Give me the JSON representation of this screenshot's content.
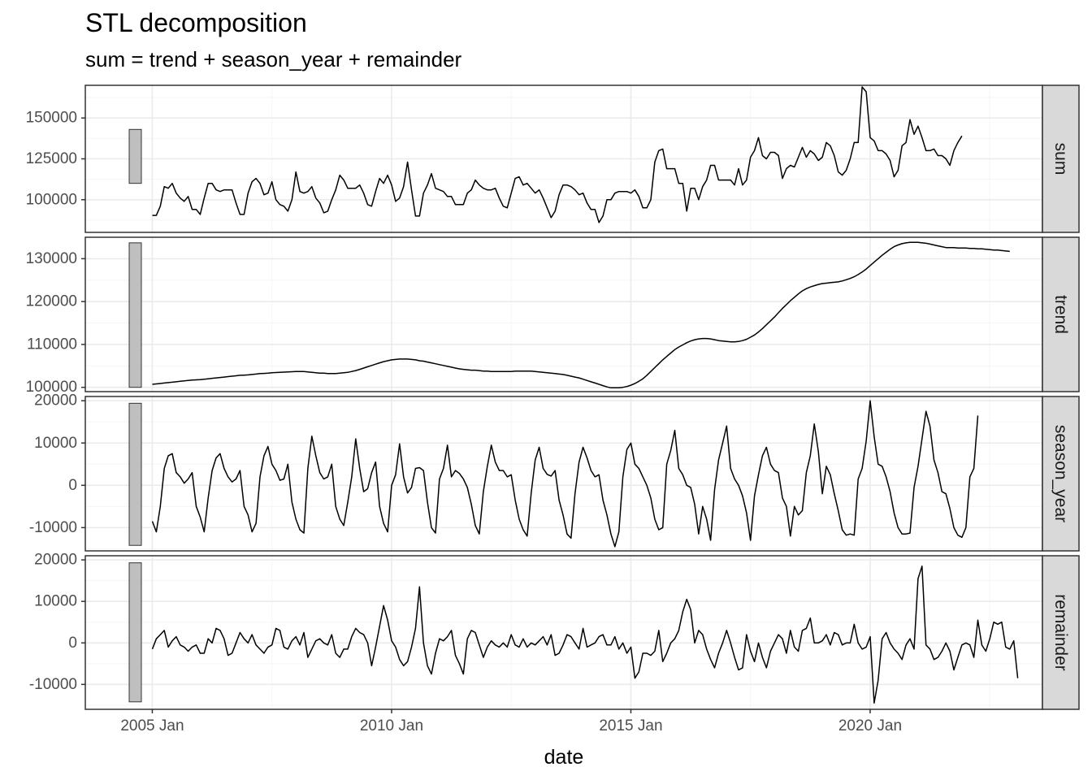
{
  "title": "STL decomposition",
  "subtitle": "sum = trend + season_year + remainder",
  "chart_data": {
    "type": "line",
    "title": "STL decomposition",
    "subtitle": "sum = trend + season_year + remainder",
    "xlabel": "date",
    "x_ticks": [
      {
        "label": "2005 Jan",
        "value": 2005.0
      },
      {
        "label": "2010 Jan",
        "value": 2010.0
      },
      {
        "label": "2015 Jan",
        "value": 2015.0
      },
      {
        "label": "2020 Jan",
        "value": 2020.0
      }
    ],
    "x_start": "2005 Jan",
    "x_frequency": "monthly",
    "xlim": [
      2003.6,
      2023.6
    ],
    "grid": true,
    "legend": "none",
    "scale_bars": true,
    "colors": {
      "line": "#000000",
      "panel_border": "#333333",
      "grid_major": "#ebebeb",
      "grid_minor": "#f5f5f5",
      "strip_fill": "#d9d9d9",
      "scale_bar_fill": "#bfbfbf"
    },
    "panels": [
      {
        "name": "sum",
        "ylim": [
          80000,
          170000
        ],
        "yticks": [
          100000,
          125000,
          150000
        ],
        "scale_bar": [
          110000,
          143000
        ],
        "values": [
          90400,
          90400,
          96000,
          108000,
          107000,
          110000,
          104000,
          101000,
          99000,
          102000,
          94000,
          94000,
          91000,
          101000,
          110000,
          110000,
          106000,
          105000,
          106000,
          106000,
          106000,
          98000,
          91000,
          91000,
          104000,
          111000,
          113000,
          110000,
          103000,
          104000,
          111000,
          100000,
          97000,
          96000,
          93000,
          100000,
          117000,
          105000,
          104000,
          105000,
          108000,
          101000,
          98000,
          92000,
          93000,
          100000,
          106000,
          115000,
          112000,
          107000,
          107000,
          107000,
          109000,
          104000,
          97000,
          96000,
          105000,
          113000,
          110000,
          115000,
          109000,
          99000,
          101000,
          108000,
          123000,
          106000,
          90000,
          90000,
          104000,
          109000,
          116000,
          107000,
          106000,
          105000,
          102000,
          102000,
          97000,
          97000,
          97000,
          104000,
          106000,
          112000,
          109000,
          107000,
          106000,
          106000,
          107000,
          101000,
          96000,
          95000,
          104000,
          113000,
          114000,
          109000,
          110000,
          107000,
          104000,
          106000,
          101000,
          95000,
          89000,
          93000,
          103000,
          109000,
          109000,
          108000,
          106000,
          103000,
          104000,
          98000,
          94000,
          94000,
          86000,
          90000,
          100000,
          100000,
          104000,
          105000,
          105000,
          105000,
          104000,
          106000,
          102000,
          95000,
          95000,
          100000,
          123000,
          130000,
          131000,
          119000,
          119000,
          119000,
          110000,
          110000,
          93000,
          107000,
          107000,
          100000,
          108000,
          112000,
          121000,
          121000,
          112000,
          112000,
          112000,
          112000,
          109000,
          119000,
          109000,
          112000,
          126000,
          130000,
          138000,
          127000,
          125000,
          129000,
          129000,
          127000,
          113000,
          119000,
          121000,
          120000,
          126000,
          132000,
          126000,
          130000,
          128000,
          124000,
          126000,
          135000,
          133000,
          127000,
          117000,
          115000,
          118000,
          125000,
          135000,
          135000,
          169000,
          166000,
          138000,
          136000,
          130000,
          130000,
          128000,
          124000,
          114000,
          118000,
          133000,
          135000,
          149000,
          140000,
          145000,
          138000,
          130000,
          130000,
          131000,
          127000,
          127000,
          125000,
          121000,
          130000,
          135000,
          139000
        ]
      },
      {
        "name": "trend",
        "ylim": [
          99000,
          135000
        ],
        "yticks": [
          100000,
          110000,
          120000,
          130000
        ],
        "scale_bar": [
          100000,
          133700
        ],
        "values": [
          100700,
          100800,
          100900,
          101000,
          101100,
          101200,
          101300,
          101400,
          101500,
          101600,
          101700,
          101750,
          101800,
          101900,
          102000,
          102100,
          102200,
          102300,
          102400,
          102500,
          102600,
          102700,
          102800,
          102850,
          102900,
          103000,
          103100,
          103200,
          103250,
          103300,
          103400,
          103450,
          103500,
          103550,
          103600,
          103650,
          103700,
          103700,
          103700,
          103600,
          103500,
          103400,
          103300,
          103300,
          103200,
          103200,
          103200,
          103300,
          103400,
          103500,
          103700,
          103900,
          104200,
          104500,
          104800,
          105100,
          105400,
          105700,
          106000,
          106200,
          106400,
          106500,
          106600,
          106600,
          106600,
          106500,
          106400,
          106200,
          106100,
          105900,
          105700,
          105500,
          105300,
          105100,
          104900,
          104700,
          104500,
          104300,
          104200,
          104100,
          104000,
          104000,
          103900,
          103800,
          103800,
          103700,
          103700,
          103700,
          103700,
          103700,
          103700,
          103800,
          103800,
          103800,
          103800,
          103800,
          103700,
          103600,
          103500,
          103400,
          103300,
          103200,
          103100,
          103000,
          102800,
          102600,
          102400,
          102200,
          101900,
          101600,
          101300,
          101000,
          100700,
          100400,
          100100,
          99900,
          99900,
          99900,
          100000,
          100200,
          100500,
          100900,
          101400,
          102000,
          102800,
          103700,
          104600,
          105500,
          106400,
          107200,
          108000,
          108800,
          109400,
          109900,
          110400,
          110800,
          111100,
          111300,
          111400,
          111400,
          111300,
          111100,
          110900,
          110800,
          110700,
          110600,
          110600,
          110700,
          110900,
          111200,
          111700,
          112200,
          112900,
          113700,
          114600,
          115500,
          116400,
          117400,
          118400,
          119300,
          120200,
          121000,
          121800,
          122500,
          123000,
          123400,
          123700,
          124000,
          124200,
          124300,
          124400,
          124500,
          124600,
          124800,
          125100,
          125400,
          125800,
          126300,
          126900,
          127600,
          128400,
          129200,
          130000,
          130800,
          131500,
          132200,
          132800,
          133200,
          133500,
          133700,
          133800,
          133800,
          133800,
          133700,
          133600,
          133400,
          133200,
          133000,
          132800,
          132600,
          132600,
          132600,
          132500,
          132500,
          132500,
          132400,
          132400,
          132300,
          132300,
          132200,
          132100,
          132000,
          132000,
          131900,
          131800,
          131700
        ]
      },
      {
        "name": "season_year",
        "ylim": [
          -15500,
          21000
        ],
        "yticks": [
          -10000,
          0,
          10000,
          20000
        ],
        "scale_bar": [
          -14200,
          19400
        ],
        "values": [
          -8500,
          -11000,
          -5000,
          4000,
          7000,
          7500,
          3000,
          2000,
          500,
          1500,
          3000,
          -5000,
          -7500,
          -11000,
          -3000,
          3500,
          6500,
          7500,
          4000,
          2000,
          800,
          1500,
          3500,
          -5000,
          -7000,
          -11000,
          -9000,
          2000,
          7000,
          9200,
          5000,
          3500,
          1200,
          1500,
          5000,
          -4000,
          -8000,
          -10500,
          -11300,
          4000,
          11600,
          7000,
          3000,
          1500,
          2000,
          5000,
          -5000,
          -8000,
          -9500,
          -4000,
          2000,
          11000,
          4000,
          -1500,
          -800,
          3000,
          5500,
          -5000,
          -9000,
          -11000,
          0,
          2500,
          9800,
          2000,
          -1800,
          -500,
          4000,
          4200,
          3500,
          -4000,
          -10000,
          -11300,
          1500,
          4000,
          9500,
          2000,
          3500,
          2800,
          1500,
          -500,
          -4500,
          -9500,
          -11500,
          -1500,
          4500,
          9500,
          5500,
          3500,
          3500,
          2000,
          2500,
          -3500,
          -8000,
          -10500,
          -12000,
          -1800,
          6000,
          9000,
          4000,
          2600,
          2200,
          3500,
          -3500,
          -7000,
          -11500,
          -12500,
          -2000,
          5500,
          9000,
          6500,
          3500,
          2000,
          2500,
          -3500,
          -7000,
          -11500,
          -14500,
          -11000,
          2000,
          8500,
          10000,
          5000,
          4000,
          2000,
          0,
          -3000,
          -8000,
          -10500,
          -10000,
          5000,
          8200,
          13000,
          4000,
          2500,
          0,
          -500,
          -4500,
          -11500,
          -5000,
          -8000,
          -13000,
          -1000,
          6000,
          10000,
          14000,
          4000,
          1500,
          0,
          -2500,
          -6500,
          -13000,
          -2500,
          2500,
          7000,
          9000,
          5000,
          3500,
          3000,
          -3000,
          -5000,
          -12000,
          -5000,
          -7000,
          -6000,
          3000,
          7000,
          14500,
          8000,
          -2000,
          4500,
          2500,
          -2000,
          -6000,
          -10500,
          -11800,
          -11500,
          -11800,
          1500,
          4000,
          10500,
          20000,
          11500,
          5000,
          4500,
          2000,
          -1500,
          -6500,
          -10000,
          -11500,
          -11500,
          -11300,
          -500,
          4500,
          11000,
          17500,
          14000,
          6000,
          3000,
          -1500,
          -2000,
          -5500,
          -10000,
          -11800,
          -12300,
          -10000,
          2000,
          4000,
          16500
        ]
      },
      {
        "name": "remainder",
        "ylim": [
          -16000,
          21000
        ],
        "yticks": [
          -10000,
          0,
          10000,
          20000
        ],
        "scale_bar": [
          -14200,
          19300
        ],
        "values": [
          -1500,
          1000,
          2000,
          3000,
          -1000,
          500,
          1500,
          -500,
          -1000,
          -2000,
          -1000,
          -500,
          -2500,
          -2500,
          1000,
          0,
          3500,
          3000,
          1000,
          -3000,
          -2500,
          0,
          2500,
          1000,
          0,
          2000,
          -500,
          -1500,
          -2500,
          -1000,
          -500,
          3500,
          3000,
          -1000,
          -1500,
          500,
          1500,
          -500,
          2500,
          -3500,
          -1500,
          500,
          1000,
          0,
          -500,
          2000,
          -2500,
          -3500,
          -1500,
          -1500,
          1500,
          3500,
          2500,
          2000,
          0,
          -5500,
          -1000,
          4000,
          9000,
          5500,
          500,
          -1000,
          -4000,
          -5500,
          -4500,
          -1000,
          3500,
          13500,
          0,
          -5500,
          -7500,
          -2500,
          1000,
          500,
          1500,
          3000,
          -3000,
          -5000,
          -7500,
          1000,
          3000,
          2500,
          -500,
          -3500,
          -1000,
          500,
          -500,
          -1000,
          0,
          -1000,
          2000,
          -500,
          -1000,
          1000,
          -1000,
          0,
          -500,
          500,
          1500,
          -500,
          2000,
          -3000,
          -2500,
          -500,
          2000,
          1500,
          0,
          -1500,
          3500,
          -1000,
          -500,
          0,
          1500,
          2000,
          -500,
          -500,
          1500,
          -1500,
          0,
          -2500,
          -1000,
          -8500,
          -7000,
          -2500,
          -2500,
          -3000,
          -2000,
          3000,
          -4500,
          -2500,
          0,
          1000,
          3000,
          7500,
          10500,
          8000,
          0,
          3000,
          2000,
          -1500,
          -4000,
          -6000,
          -2500,
          0,
          3000,
          0,
          -3500,
          -6500,
          -6000,
          2000,
          -2000,
          -4500,
          0,
          -3500,
          -6000,
          -2000,
          0,
          2000,
          1000,
          -2500,
          3000,
          -1000,
          -2000,
          3000,
          3500,
          6000,
          0,
          0,
          500,
          2000,
          -500,
          2500,
          2000,
          -500,
          0,
          0,
          4500,
          0,
          -1500,
          -1000,
          1500,
          -14500,
          -9000,
          1000,
          2500,
          0,
          -1500,
          -2500,
          -4000,
          -500,
          1000,
          -1500,
          15500,
          18500,
          -500,
          -1500,
          -4000,
          -3500,
          -2000,
          0,
          -2000,
          -6500,
          -3500,
          -500,
          0,
          -500,
          -3500,
          5500,
          -500,
          -2000,
          1000,
          5000,
          4500,
          5000,
          -1000,
          -1500,
          500,
          -8500
        ]
      }
    ]
  }
}
